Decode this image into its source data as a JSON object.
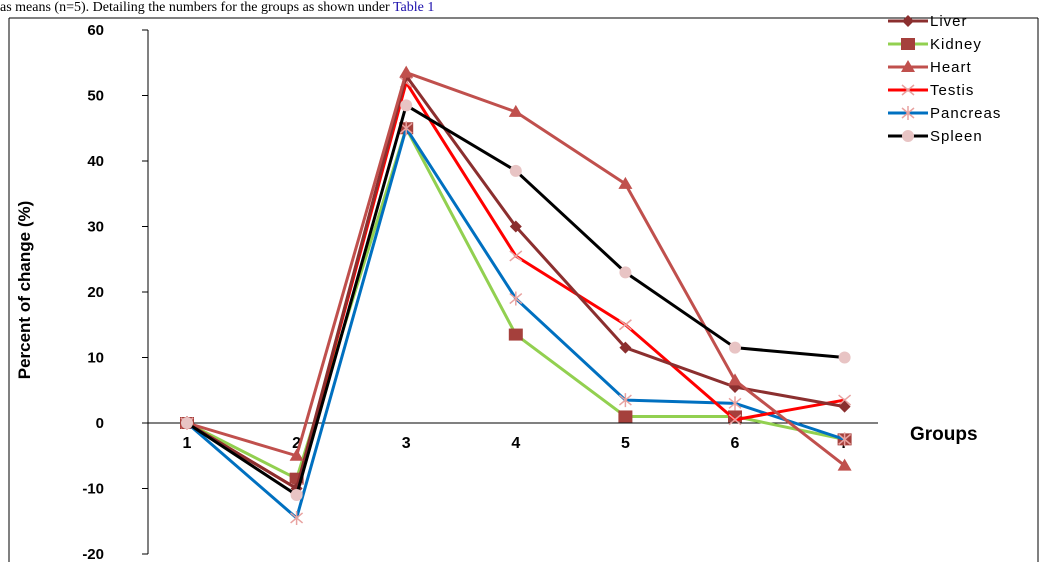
{
  "caption": {
    "text": "as means (n=5). Detailing the numbers for the groups as shown under ",
    "link": "Table 1"
  },
  "chart_data": {
    "type": "line",
    "xlabel": "Groups",
    "ylabel": "Percent of change (%)",
    "categories": [
      "1",
      "2",
      "3",
      "4",
      "5",
      "6",
      "7"
    ],
    "ylim": [
      -20,
      60
    ],
    "yticks": [
      60,
      50,
      40,
      30,
      20,
      10,
      0,
      -10,
      -20
    ],
    "legend_position": "top-right",
    "series": [
      {
        "name": "Liver",
        "color": "#8b2f2f",
        "marker": "diamond",
        "values": [
          0,
          -10,
          53,
          30,
          11.5,
          5.5,
          2.5
        ]
      },
      {
        "name": "Kidney",
        "color": "#92d050",
        "marker": "square",
        "values": [
          0,
          -8.5,
          45,
          13.5,
          1,
          1,
          -2.5
        ]
      },
      {
        "name": "Heart",
        "color": "#c0504d",
        "marker": "triangle",
        "values": [
          0,
          -5,
          53.5,
          47.5,
          36.5,
          6.5,
          -6.5
        ]
      },
      {
        "name": "Testis",
        "color": "#ff0000",
        "marker": "x",
        "values": [
          0,
          -10,
          52,
          25.5,
          15,
          0.5,
          3.5
        ]
      },
      {
        "name": "Pancreas",
        "color": "#0070c0",
        "marker": "star",
        "values": [
          0,
          -14.5,
          45,
          19,
          3.5,
          3,
          -2.5
        ]
      },
      {
        "name": "Spleen",
        "color": "#000000",
        "marker": "circle",
        "values": [
          0,
          -11,
          48.5,
          38.5,
          23,
          11.5,
          10
        ]
      }
    ],
    "marker_colors": {
      "Liver": "#8b2f2f",
      "Kidney": "#a5403c",
      "Heart": "#c0504d",
      "Testis": "#e8a2a0",
      "Pancreas": "#e8a2a0",
      "Spleen": "#e8c4c4"
    }
  }
}
